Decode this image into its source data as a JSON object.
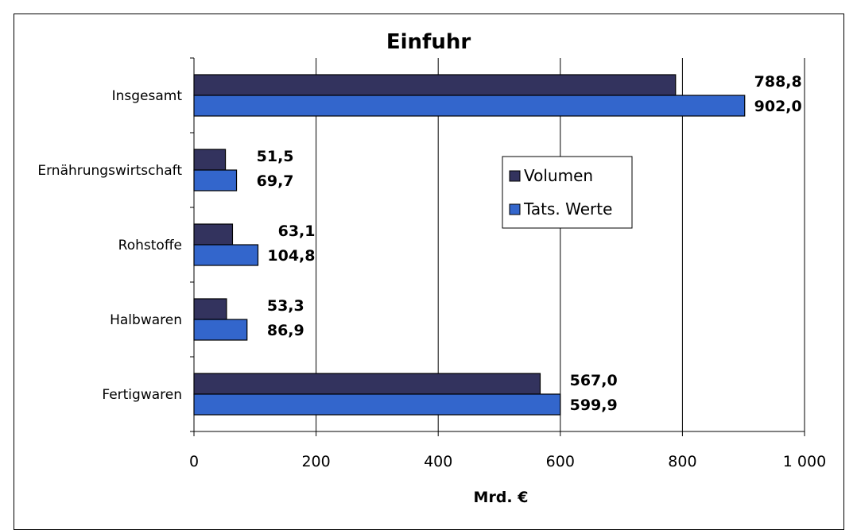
{
  "chart_data": {
    "type": "bar",
    "orientation": "horizontal",
    "title": "Einfuhr",
    "xlabel": "Mrd. €",
    "ylabel": "",
    "xlim": [
      0,
      1000
    ],
    "x_ticks": [
      0,
      200,
      400,
      600,
      800,
      1000
    ],
    "x_tick_labels": [
      "0",
      "200",
      "400",
      "600",
      "800",
      "1 000"
    ],
    "grid": "vertical",
    "legend_position": "center-right",
    "categories": [
      "Insgesamt",
      "Ernährungswirtschaft",
      "Rohstoffe",
      "Halbwaren",
      "Fertigwaren"
    ],
    "series": [
      {
        "name": "Volumen",
        "color": "#33335e",
        "values": [
          788.8,
          51.5,
          63.1,
          53.3,
          567.0
        ],
        "labels": [
          "788,8",
          "51,5",
          "63,1",
          "53,3",
          "567,0"
        ]
      },
      {
        "name": "Tats. Werte",
        "color": "#3366cc",
        "values": [
          902.0,
          69.7,
          104.8,
          86.9,
          599.9
        ],
        "labels": [
          "902,0",
          "69,7",
          "104,8",
          "86,9",
          "599,9"
        ]
      }
    ]
  }
}
